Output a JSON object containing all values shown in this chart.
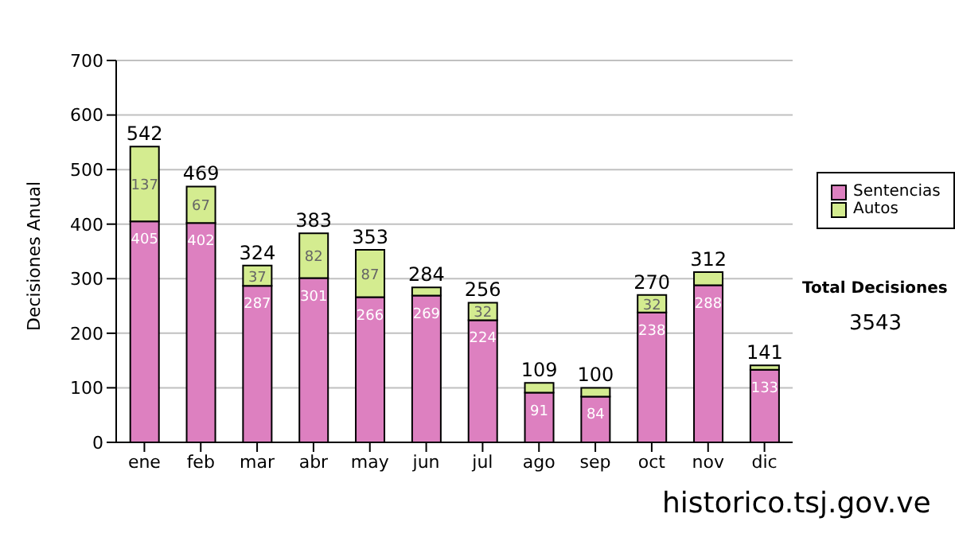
{
  "chart_data": {
    "type": "bar",
    "stacked": true,
    "ylabel": "Decisiones Anual",
    "categories": [
      "ene",
      "feb",
      "mar",
      "abr",
      "may",
      "jun",
      "jul",
      "ago",
      "sep",
      "oct",
      "nov",
      "dic"
    ],
    "series": [
      {
        "name": "Sentencias",
        "color": "#dd80c0",
        "values": [
          405,
          402,
          287,
          301,
          266,
          269,
          224,
          91,
          84,
          238,
          288,
          133
        ],
        "value_labels": [
          "405",
          "402",
          "287",
          "301",
          "266",
          "269",
          "224",
          "91",
          "84",
          "238",
          "288",
          "133"
        ]
      },
      {
        "name": "Autos",
        "color": "#d4ec90",
        "values": [
          137,
          67,
          37,
          82,
          87,
          15,
          32,
          18,
          16,
          32,
          24,
          8
        ],
        "value_labels": [
          "137",
          "67",
          "37",
          "82",
          "87",
          null,
          "32",
          null,
          null,
          "32",
          null,
          null
        ]
      }
    ],
    "totals": [
      "542",
      "469",
      "324",
      "383",
      "353",
      "284",
      "256",
      "109",
      "100",
      "270",
      "312",
      "141"
    ],
    "ylim": [
      0,
      700
    ],
    "yticks": [
      0,
      100,
      200,
      300,
      400,
      500,
      600,
      700
    ],
    "grid": "y",
    "legend": "right",
    "annotations": [
      "Total Decisiones",
      "3543",
      "historico.tsj.gov.ve"
    ]
  }
}
